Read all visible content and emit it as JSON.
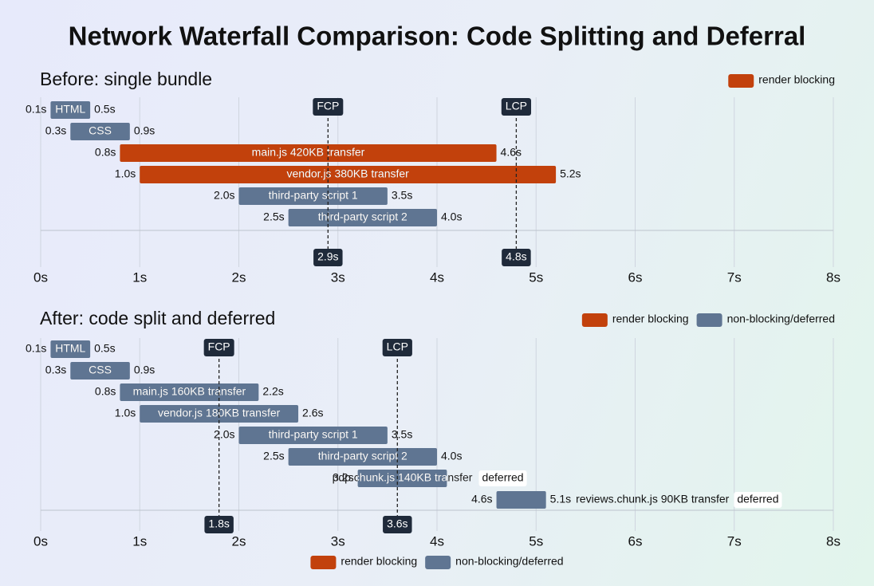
{
  "title": "Network Waterfall Comparison: Code Splitting and Deferral",
  "chart_data": [
    {
      "type": "gantt",
      "title": "Before: single bundle",
      "categories": [
        "HTML",
        "CSS",
        "main.js 420KB transfer",
        "vendor.js 380KB transfer",
        "third-party script 1",
        "third-party script 2"
      ],
      "starts": [
        0.1,
        0.3,
        0.8,
        1.0,
        2.0,
        2.5
      ],
      "ends": [
        0.5,
        0.9,
        4.6,
        5.2,
        3.5,
        4.0
      ],
      "start_labels": [
        "0.1s",
        "0.3s",
        "0.8s",
        "1.0s",
        "2.0s",
        "2.5s"
      ],
      "end_labels": [
        "0.5s",
        "0.9s",
        "4.6s",
        "5.2s",
        "3.5s",
        "4.0s"
      ],
      "colors": [
        "#5f7592",
        "#5f7592",
        "#c2410c",
        "#c2410c",
        "#5f7592",
        "#5f7592"
      ],
      "tags": [
        null,
        null,
        null,
        null,
        null,
        null
      ],
      "markers": [
        {
          "name": "FCP",
          "value": 2.9,
          "label": "2.9s"
        },
        {
          "name": "LCP",
          "value": 4.8,
          "label": "4.8s"
        }
      ],
      "legend": [
        {
          "name": "render blocking",
          "color": "#c2410c"
        }
      ],
      "xlim": [
        0,
        8
      ],
      "xticks": [
        {
          "value": 0,
          "label": "0s"
        },
        {
          "value": 1,
          "label": "1s"
        },
        {
          "value": 2,
          "label": "2s"
        },
        {
          "value": 3,
          "label": "3s"
        },
        {
          "value": 4,
          "label": "4s"
        },
        {
          "value": 5,
          "label": "5s"
        },
        {
          "value": 6,
          "label": "6s"
        },
        {
          "value": 7,
          "label": "7s"
        },
        {
          "value": 8,
          "label": "8s"
        }
      ],
      "grid": true
    },
    {
      "type": "gantt",
      "title": "After: code split and deferred",
      "categories": [
        "HTML",
        "CSS",
        "main.js 160KB transfer",
        "vendor.js 180KB transfer",
        "third-party script 1",
        "third-party script 2",
        "pdp.chunk.js 140KB transfer",
        "reviews.chunk.js 90KB transfer"
      ],
      "starts": [
        0.1,
        0.3,
        0.8,
        1.0,
        2.0,
        2.5,
        3.2,
        4.6
      ],
      "ends": [
        0.5,
        0.9,
        2.2,
        2.6,
        3.5,
        4.0,
        4.1,
        5.1
      ],
      "start_labels": [
        "0.1s",
        "0.3s",
        "0.8s",
        "1.0s",
        "2.0s",
        "2.5s",
        "3.2s",
        "4.6s"
      ],
      "end_labels": [
        "0.5s",
        "0.9s",
        "2.2s",
        "2.6s",
        "3.5s",
        "4.0s",
        null,
        "5.1s"
      ],
      "colors": [
        "#5f7592",
        "#5f7592",
        "#5f7592",
        "#5f7592",
        "#5f7592",
        "#5f7592",
        "#5f7592",
        "#5f7592"
      ],
      "tags": [
        null,
        null,
        null,
        null,
        null,
        null,
        "deferred",
        "deferred"
      ],
      "markers": [
        {
          "name": "FCP",
          "value": 1.8,
          "label": "1.8s"
        },
        {
          "name": "LCP",
          "value": 3.6,
          "label": "3.6s"
        }
      ],
      "legend": [
        {
          "name": "render blocking",
          "color": "#c2410c"
        },
        {
          "name": "non-blocking/deferred",
          "color": "#5f7592"
        }
      ],
      "xlim": [
        0,
        8
      ],
      "xticks": [
        {
          "value": 0,
          "label": "0s"
        },
        {
          "value": 1,
          "label": "1s"
        },
        {
          "value": 2,
          "label": "2s"
        },
        {
          "value": 3,
          "label": "3s"
        },
        {
          "value": 4,
          "label": "4s"
        },
        {
          "value": 5,
          "label": "5s"
        },
        {
          "value": 6,
          "label": "6s"
        },
        {
          "value": 7,
          "label": "7s"
        },
        {
          "value": 8,
          "label": "8s"
        }
      ],
      "grid": true
    }
  ]
}
